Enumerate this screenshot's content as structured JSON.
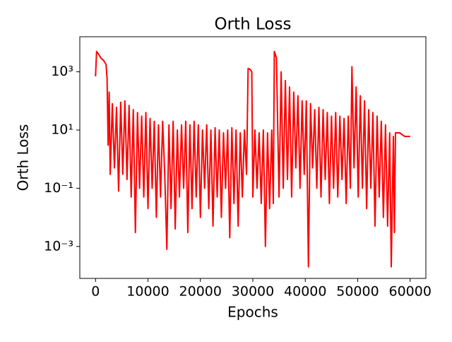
{
  "chart_data": {
    "type": "line",
    "title": "Orth Loss",
    "x_label": "Epochs",
    "y_label": "Orth Loss",
    "color": "#ff0000",
    "log_y": true,
    "grid": false,
    "xlim": [
      -3000,
      63000
    ],
    "ylim": [
      8e-05,
      16000
    ],
    "xticks": [
      0,
      10000,
      20000,
      30000,
      40000,
      50000,
      60000
    ],
    "yticks": [
      {
        "value": 0.001,
        "label": "10⁻³"
      },
      {
        "value": 0.1,
        "label": "10⁻¹"
      },
      {
        "value": 10,
        "label": "10¹"
      },
      {
        "value": 1000,
        "label": "10³"
      }
    ],
    "x": [
      0,
      200,
      600,
      1000,
      1500,
      2000,
      2200,
      2400,
      2600,
      2800,
      3200,
      3600,
      4000,
      4400,
      4800,
      5200,
      5600,
      6000,
      6400,
      6800,
      7200,
      7600,
      8000,
      8400,
      8800,
      9200,
      9600,
      10000,
      10400,
      10800,
      11200,
      11600,
      12000,
      12400,
      12800,
      13200,
      13600,
      14000,
      14400,
      14800,
      15200,
      15600,
      16000,
      16400,
      16800,
      17200,
      17600,
      18000,
      18400,
      18800,
      19200,
      19600,
      20000,
      20400,
      20800,
      21200,
      21600,
      22000,
      22400,
      22800,
      23200,
      23600,
      24000,
      24400,
      24800,
      25200,
      25600,
      26000,
      26400,
      26800,
      27200,
      27600,
      28000,
      28400,
      28800,
      29100,
      29500,
      29800,
      30000,
      30400,
      30800,
      31200,
      31600,
      32000,
      32400,
      32800,
      33200,
      33600,
      33900,
      34100,
      34500,
      35000,
      35400,
      35800,
      36200,
      36600,
      37000,
      37400,
      37800,
      38200,
      38600,
      39000,
      39400,
      39800,
      40200,
      40600,
      41000,
      41400,
      41800,
      42200,
      42600,
      43000,
      43400,
      43800,
      44200,
      44600,
      45000,
      45400,
      45800,
      46200,
      46600,
      47000,
      47400,
      47800,
      48200,
      48600,
      48900,
      49300,
      49700,
      50100,
      50500,
      50900,
      51300,
      51700,
      52100,
      52500,
      52900,
      53300,
      53700,
      54100,
      54500,
      54900,
      55300,
      55700,
      56100,
      56400,
      56800,
      57000,
      57200,
      58000,
      59000,
      60000
    ],
    "values": [
      700,
      5000,
      4000,
      3000,
      2500,
      1800,
      600,
      3,
      200,
      0.3,
      80,
      0.5,
      60,
      0.08,
      90,
      0.3,
      100,
      0.2,
      70,
      0.05,
      50,
      0.003,
      40,
      0.1,
      30,
      0.05,
      40,
      0.02,
      25,
      0.1,
      20,
      0.01,
      15,
      0.05,
      20,
      0.3,
      0.0008,
      15,
      0.02,
      20,
      0.004,
      10,
      0.05,
      15,
      0.1,
      20,
      0.003,
      15,
      0.02,
      20,
      0.05,
      15,
      0.01,
      10,
      0.1,
      15,
      0.02,
      10,
      0.005,
      12,
      0.05,
      10,
      0.01,
      8,
      0.1,
      10,
      0.002,
      12,
      0.03,
      10,
      0.005,
      8,
      0.05,
      10,
      0.3,
      1300,
      1200,
      1000,
      0.05,
      10,
      0.1,
      8,
      0.03,
      10,
      0.001,
      8,
      0.02,
      10,
      0.03,
      5000,
      3000,
      0.05,
      1000,
      0.1,
      500,
      0.2,
      300,
      0.05,
      200,
      0.5,
      150,
      0.1,
      100,
      0.3,
      100,
      0.0002,
      80,
      0.5,
      50,
      0.1,
      60,
      0.05,
      50,
      0.2,
      40,
      0.03,
      30,
      0.1,
      40,
      0.05,
      30,
      0.2,
      25,
      0.03,
      30,
      0.1,
      1500,
      0.5,
      300,
      0.05,
      150,
      0.1,
      100,
      0.02,
      50,
      0.1,
      40,
      0.005,
      30,
      0.05,
      20,
      0.01,
      15,
      0.005,
      8,
      0.0002,
      6,
      0.003,
      8,
      8,
      6,
      6
    ]
  }
}
